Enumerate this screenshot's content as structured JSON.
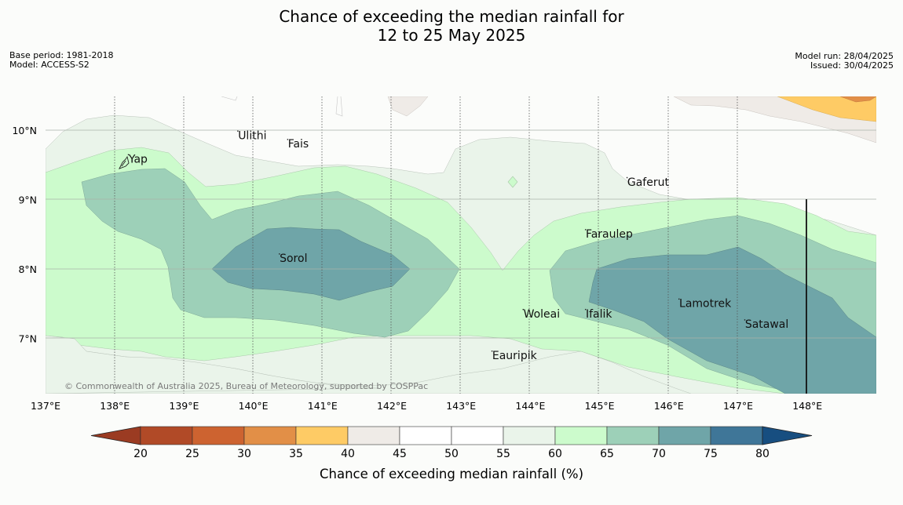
{
  "title": {
    "line1": "Chance of exceeding the median rainfall for",
    "line2": "12 to 25 May 2025"
  },
  "meta": {
    "base_period": "Base period: 1981-2018",
    "model": "Model: ACCESS-S2",
    "model_run": "Model run: 28/04/2025",
    "issued": "Issued: 30/04/2025"
  },
  "map": {
    "lon_ticks": [
      "137°E",
      "138°E",
      "139°E",
      "140°E",
      "141°E",
      "142°E",
      "143°E",
      "144°E",
      "145°E",
      "146°E",
      "147°E",
      "148°E"
    ],
    "lat_ticks": [
      "10°N",
      "9°N",
      "8°N",
      "7°N"
    ],
    "places": [
      {
        "name": "Yap",
        "lon": 138.2,
        "lat": 9.53
      },
      {
        "name": "Ulithi",
        "lon": 139.78,
        "lat": 9.87
      },
      {
        "name": "Fais",
        "lon": 140.5,
        "lat": 9.75
      },
      {
        "name": "Gaferut",
        "lon": 145.4,
        "lat": 9.2
      },
      {
        "name": "Faraulep",
        "lon": 144.8,
        "lat": 8.45
      },
      {
        "name": "Sorol",
        "lon": 140.38,
        "lat": 8.1
      },
      {
        "name": "Woleai",
        "lon": 143.9,
        "lat": 7.3
      },
      {
        "name": "Ifalik",
        "lon": 144.8,
        "lat": 7.3
      },
      {
        "name": "Lamotrek",
        "lon": 146.15,
        "lat": 7.45
      },
      {
        "name": "Satawal",
        "lon": 147.1,
        "lat": 7.15
      },
      {
        "name": "Eauripik",
        "lon": 143.45,
        "lat": 6.7
      }
    ],
    "copyright": "© Commonwealth of Australia 2025, Bureau of Meteorology, supported by COSPPac"
  },
  "colorbar": {
    "label": "Chance of exceeding median rainfall (%)",
    "ticks": [
      "20",
      "25",
      "30",
      "35",
      "40",
      "45",
      "50",
      "55",
      "60",
      "65",
      "70",
      "75",
      "80"
    ],
    "colors": [
      "#b14a27",
      "#cd6330",
      "#e28f47",
      "#fecb65",
      "#efebe7",
      "#ffffff",
      "#ffffff",
      "#eaf4ea",
      "#ccfbcc",
      "#9dd0b8",
      "#6fa5a8",
      "#3f7698"
    ],
    "under_color": "#9b3b22",
    "over_color": "#174e80"
  },
  "colors": {
    "c55_60": "#eaf4ea",
    "c60_65": "#ccfbcc",
    "c65_70": "#9dd0b8",
    "c70_75": "#6fa5a8",
    "c40_45": "#efebe7",
    "c35_40": "#fecb65",
    "c30_35": "#e28f47"
  }
}
